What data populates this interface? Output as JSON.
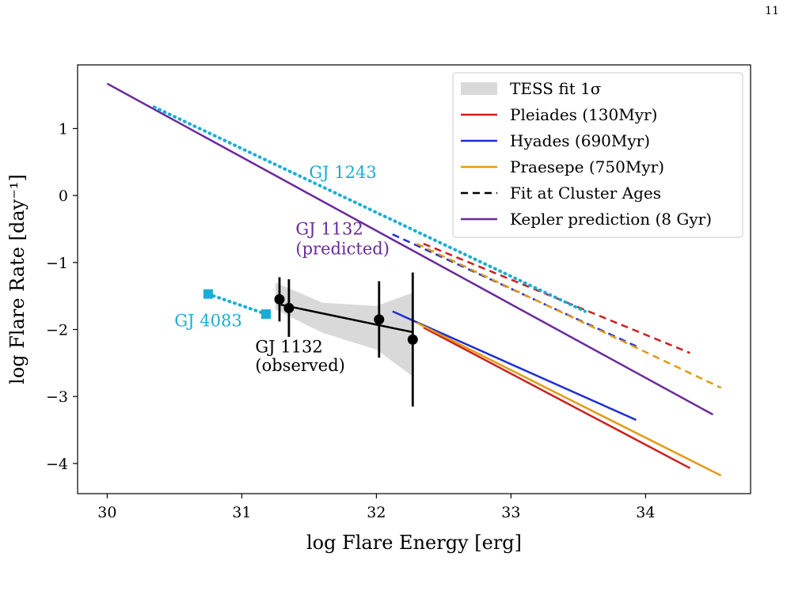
{
  "page_number": "11",
  "chart_data": {
    "type": "line",
    "title": "",
    "xlabel": "log Flare Energy [erg]",
    "ylabel": "log Flare Rate [day⁻¹]",
    "xlim": [
      29.78,
      34.78
    ],
    "ylim": [
      -4.45,
      1.95
    ],
    "xticks": [
      30,
      31,
      32,
      33,
      34
    ],
    "yticks": [
      1,
      0,
      -1,
      -2,
      -3,
      -4
    ],
    "ytick_labels": [
      "1",
      "0",
      "−1",
      "−2",
      "−3",
      "−4"
    ],
    "grid": false,
    "legend_placement": "top-right",
    "legend": [
      {
        "label": "TESS fit 1σ",
        "kind": "patch",
        "color": "#d9d9d9"
      },
      {
        "label": "Pleiades (130Myr)",
        "kind": "line",
        "color": "#cc1f1f"
      },
      {
        "label": "Hyades (690Myr)",
        "kind": "line",
        "color": "#1f2fd6"
      },
      {
        "label": "Praesepe (750Myr)",
        "kind": "line",
        "color": "#e39a10"
      },
      {
        "label": "Fit at Cluster Ages",
        "kind": "dashed",
        "color": "#000000"
      },
      {
        "label": "Kepler prediction (8 Gyr)",
        "kind": "line",
        "color": "#6a2a9c"
      }
    ],
    "shaded_band": {
      "name": "TESS fit 1σ",
      "color": "#d9d9d9",
      "x": [
        31.25,
        31.6,
        32.0,
        32.27
      ],
      "upper": [
        -1.3,
        -1.6,
        -1.65,
        -1.45
      ],
      "lower": [
        -1.7,
        -2.05,
        -2.3,
        -2.7
      ]
    },
    "series": [
      {
        "name": "Kepler prediction (8 Gyr)",
        "style": "solid",
        "color": "#6a2a9c",
        "x": [
          30.0,
          34.5
        ],
        "y": [
          1.67,
          -3.27
        ]
      },
      {
        "name": "Pleiades (130Myr)",
        "style": "solid",
        "color": "#cc1f1f",
        "x": [
          32.35,
          34.33
        ],
        "y": [
          -1.97,
          -4.07
        ]
      },
      {
        "name": "Hyades (690Myr)",
        "style": "solid",
        "color": "#1f2fd6",
        "x": [
          32.12,
          33.93
        ],
        "y": [
          -1.73,
          -3.35
        ]
      },
      {
        "name": "Praesepe (750Myr)",
        "style": "solid",
        "color": "#e39a10",
        "x": [
          32.3,
          34.56
        ],
        "y": [
          -1.9,
          -4.18
        ]
      },
      {
        "name": "Pleiades fit at cluster age",
        "style": "dashed",
        "color": "#cc1f1f",
        "x": [
          32.35,
          34.33
        ],
        "y": [
          -0.72,
          -2.35
        ]
      },
      {
        "name": "Hyades fit at cluster age",
        "style": "dashed",
        "color": "#1f2fd6",
        "x": [
          32.12,
          33.93
        ],
        "y": [
          -0.58,
          -2.25
        ]
      },
      {
        "name": "Praesepe fit at cluster age",
        "style": "dashed",
        "color": "#e39a10",
        "x": [
          32.3,
          34.56
        ],
        "y": [
          -0.72,
          -2.87
        ]
      },
      {
        "name": "GJ 1243",
        "style": "dotted",
        "color": "#17aed6",
        "x": [
          30.35,
          33.55
        ],
        "y": [
          1.32,
          -1.73
        ]
      },
      {
        "name": "GJ 4083",
        "style": "dotted-squares",
        "color": "#17aed6",
        "x": [
          30.75,
          31.18
        ],
        "y": [
          -1.47,
          -1.77
        ]
      },
      {
        "name": "GJ 1132 (observed) fit",
        "style": "solid",
        "color": "#000000",
        "x": [
          31.29,
          32.27
        ],
        "y": [
          -1.63,
          -2.04
        ]
      }
    ],
    "points": {
      "name": "GJ 1132 (observed)",
      "color": "#000000",
      "x": [
        31.28,
        31.35,
        32.02,
        32.27
      ],
      "y": [
        -1.55,
        -1.68,
        -1.85,
        -2.15
      ],
      "yerr": [
        0.33,
        0.43,
        0.57,
        1.0
      ]
    },
    "annotations": [
      {
        "text": "GJ 1243",
        "color": "#17aed6",
        "x": 31.5,
        "y": 0.26,
        "anchor": "start"
      },
      {
        "text": "GJ 1132",
        "color": "#6a2a9c",
        "x": 31.4,
        "y": -0.58,
        "anchor": "start"
      },
      {
        "text": "(predicted)",
        "color": "#6a2a9c",
        "x": 31.4,
        "y": -0.88,
        "anchor": "start"
      },
      {
        "text": "GJ 4083",
        "color": "#17aed6",
        "x": 30.5,
        "y": -1.95,
        "anchor": "start"
      },
      {
        "text": "GJ 1132",
        "color": "#000000",
        "x": 31.1,
        "y": -2.34,
        "anchor": "start"
      },
      {
        "text": "(observed)",
        "color": "#000000",
        "x": 31.1,
        "y": -2.62,
        "anchor": "start"
      }
    ]
  }
}
